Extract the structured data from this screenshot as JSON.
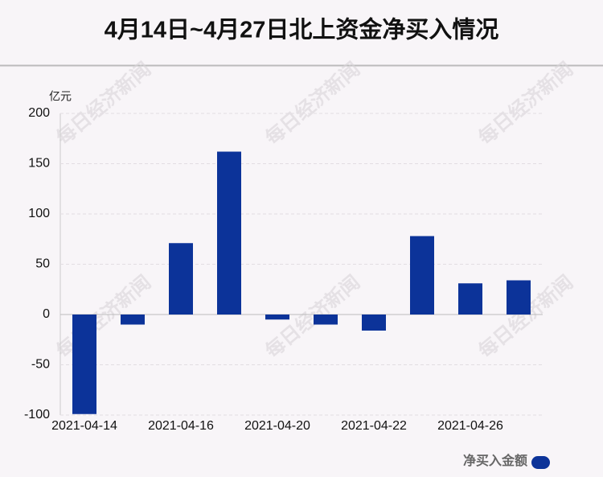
{
  "chart_data": {
    "type": "bar",
    "title": "4月14日~4月27日北上资金净买入情况",
    "y_unit": "亿元",
    "watermark": "每日经济新闻",
    "categories": [
      "2021-04-14",
      null,
      "2021-04-16",
      null,
      "2021-04-20",
      null,
      "2021-04-22",
      null,
      "2021-04-26",
      null
    ],
    "series": [
      {
        "name": "净买入金额",
        "color": "#0c3399",
        "values": [
          -99,
          -10,
          71,
          162,
          -5,
          -10,
          -16,
          78,
          31,
          34
        ]
      }
    ],
    "ylim": [
      -100,
      200
    ],
    "yticks": [
      -100,
      -50,
      0,
      50,
      100,
      150,
      200
    ],
    "grid": true,
    "legend": "bottom-right"
  }
}
